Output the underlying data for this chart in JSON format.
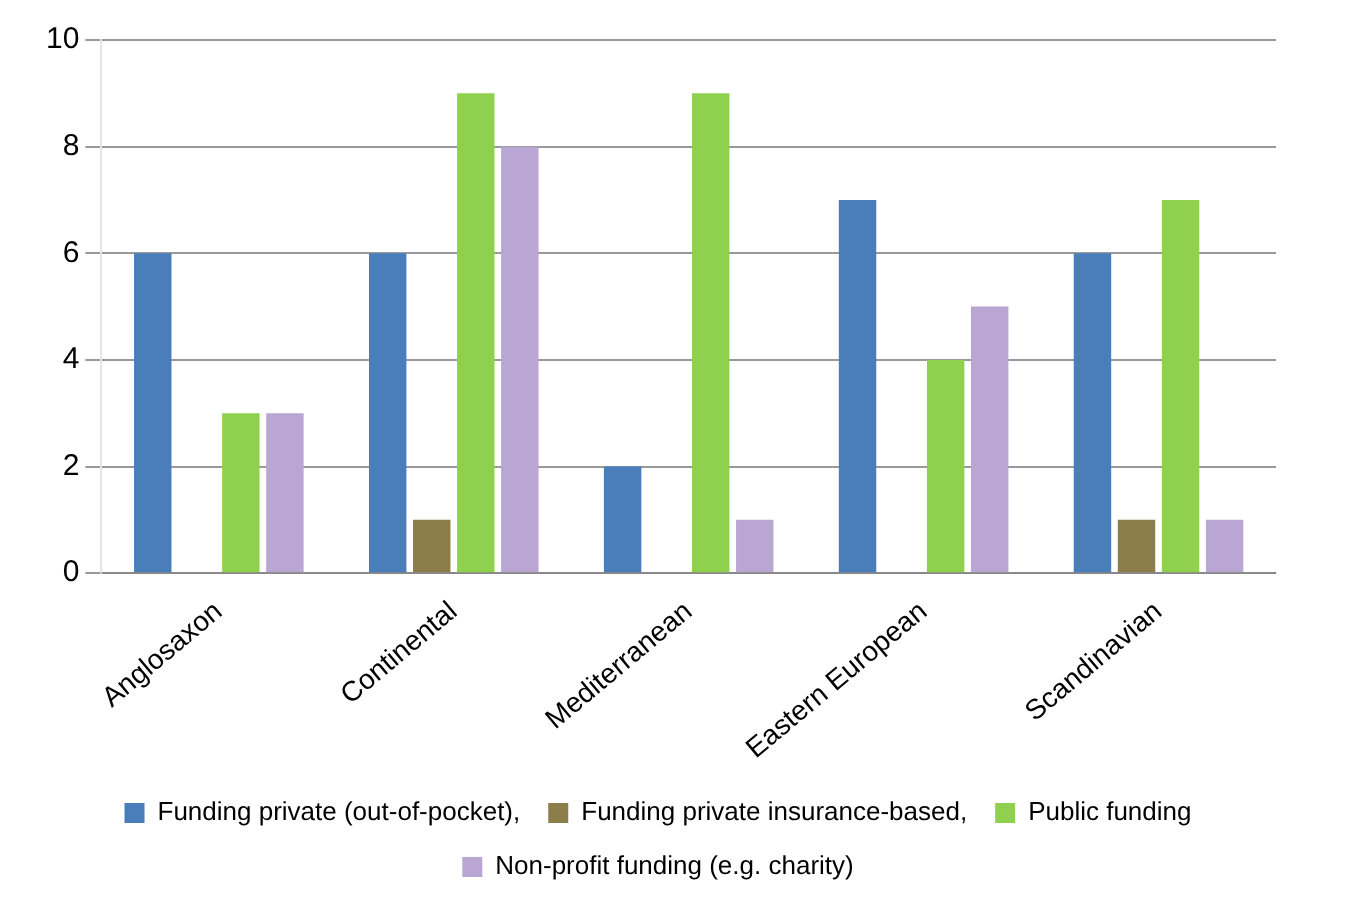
{
  "chart_data": {
    "type": "bar",
    "categories": [
      "Anglosaxon",
      "Continental",
      "Mediterranean",
      "Eastern European",
      "Scandinavian"
    ],
    "series": [
      {
        "name": "Funding private (out-of-pocket),",
        "color": "#4a7ebb",
        "values": [
          6,
          6,
          2,
          7,
          6
        ]
      },
      {
        "name": "Funding private insurance-based,",
        "color": "#8c7e4a",
        "values": [
          0,
          1,
          0,
          0,
          1
        ]
      },
      {
        "name": "Public funding",
        "color": "#8fd14f",
        "values": [
          3,
          9,
          9,
          4,
          7
        ]
      },
      {
        "name": "Non-profit funding (e.g. charity)",
        "color": "#b9a6d3",
        "values": [
          3,
          8,
          1,
          5,
          1
        ]
      }
    ],
    "ylim": [
      0,
      10
    ],
    "yticks": [
      0,
      2,
      4,
      6,
      8,
      10
    ],
    "grid": "y",
    "legend": "bottom"
  }
}
